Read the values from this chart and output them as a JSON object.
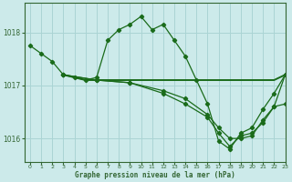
{
  "title": "Graphe pression niveau de la mer (hPa)",
  "background_color": "#cceaea",
  "grid_color": "#aad4d4",
  "line_color": "#1a6b1a",
  "spine_color": "#336633",
  "xlim": [
    -0.5,
    23
  ],
  "ylim": [
    1015.55,
    1018.55
  ],
  "yticks": [
    1016,
    1017,
    1018
  ],
  "xticks": [
    0,
    1,
    2,
    3,
    4,
    5,
    6,
    7,
    8,
    9,
    10,
    11,
    12,
    13,
    14,
    15,
    16,
    17,
    18,
    19,
    20,
    21,
    22,
    23
  ],
  "curve1_x": [
    0,
    1,
    2,
    3,
    4,
    5,
    6,
    7,
    8,
    9,
    10,
    11,
    12,
    13,
    14,
    15,
    16,
    17,
    18,
    19,
    20,
    21,
    22,
    23
  ],
  "curve1_y": [
    1017.75,
    1017.6,
    1017.45,
    1017.2,
    1017.15,
    1017.1,
    1017.15,
    1017.85,
    1018.05,
    1018.15,
    1018.3,
    1018.05,
    1018.15,
    1017.85,
    1017.55,
    1017.1,
    1016.65,
    1015.95,
    1015.8,
    1016.1,
    1016.2,
    1016.55,
    1016.85,
    1017.2
  ],
  "curve2_x": [
    3,
    4,
    5,
    6,
    7,
    8,
    9,
    10,
    11,
    12,
    13,
    14,
    15,
    16,
    17,
    18,
    19,
    20,
    21,
    22,
    23
  ],
  "curve2_y": [
    1017.2,
    1017.15,
    1017.1,
    1017.1,
    1017.1,
    1017.1,
    1017.1,
    1017.1,
    1017.1,
    1017.1,
    1017.1,
    1017.1,
    1017.1,
    1017.1,
    1017.1,
    1017.1,
    1017.1,
    1017.1,
    1017.1,
    1017.1,
    1017.2
  ],
  "curve3_x": [
    3,
    6,
    9,
    12,
    14,
    16,
    17,
    18,
    19,
    20,
    21,
    22,
    23
  ],
  "curve3_y": [
    1017.2,
    1017.1,
    1017.05,
    1016.9,
    1016.75,
    1016.45,
    1016.2,
    1016.0,
    1016.0,
    1016.05,
    1016.35,
    1016.6,
    1016.65
  ],
  "curve4_x": [
    3,
    6,
    9,
    12,
    14,
    16,
    17,
    18,
    19,
    20,
    21,
    22,
    23
  ],
  "curve4_y": [
    1017.2,
    1017.1,
    1017.05,
    1016.85,
    1016.65,
    1016.4,
    1016.1,
    1015.85,
    1016.05,
    1016.1,
    1016.3,
    1016.6,
    1017.2
  ]
}
